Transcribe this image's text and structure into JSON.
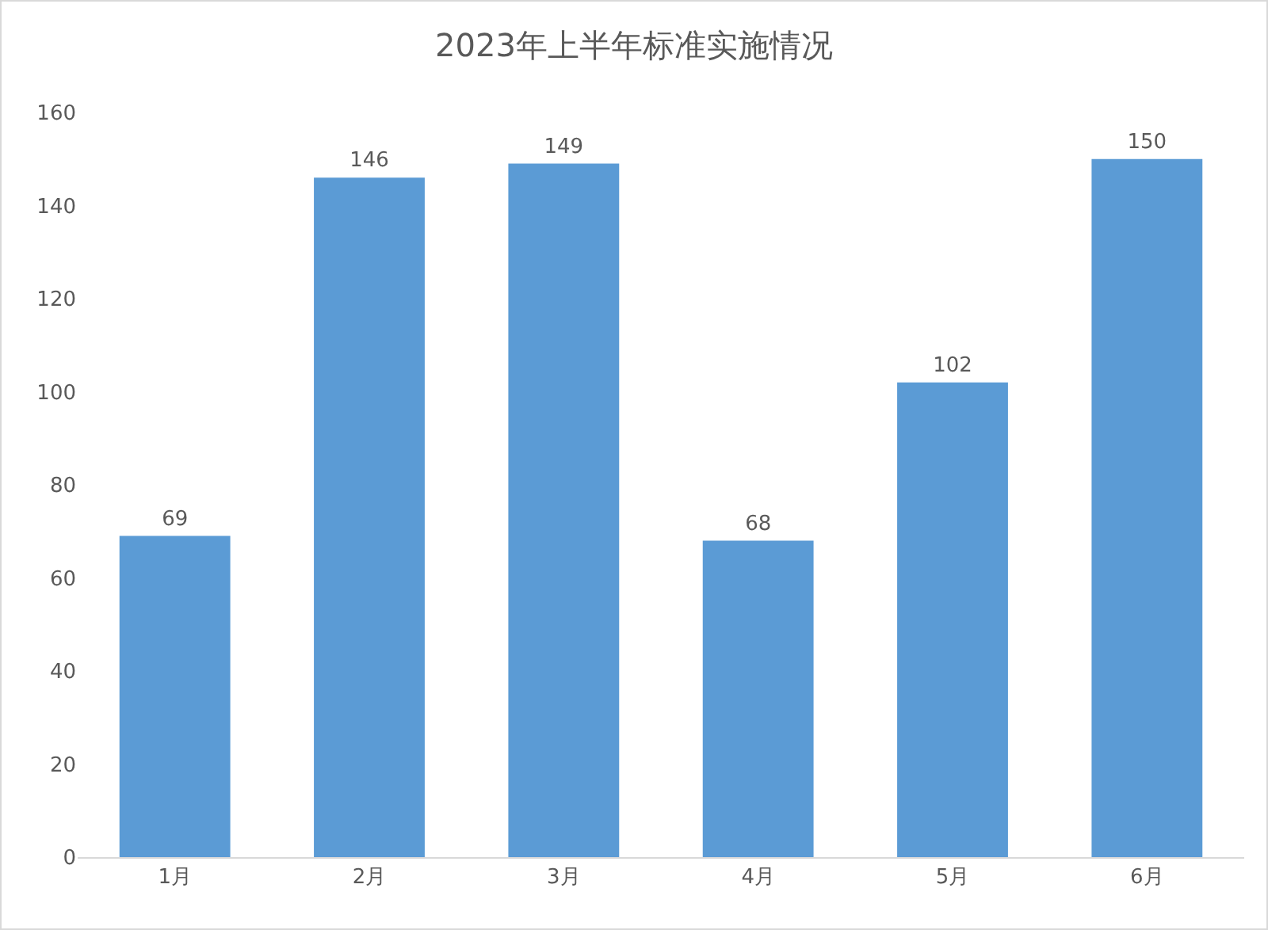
{
  "chart_data": {
    "type": "bar",
    "title": "2023年上半年标准实施情况",
    "categories": [
      "1月",
      "2月",
      "3月",
      "4月",
      "5月",
      "6月"
    ],
    "values": [
      69,
      146,
      149,
      68,
      102,
      150
    ],
    "color": "#5b9bd5",
    "ylim": [
      0,
      160
    ],
    "yticks": [
      0,
      20,
      40,
      60,
      80,
      100,
      120,
      140,
      160
    ],
    "grid": false,
    "data_labels": true,
    "legend": false
  }
}
